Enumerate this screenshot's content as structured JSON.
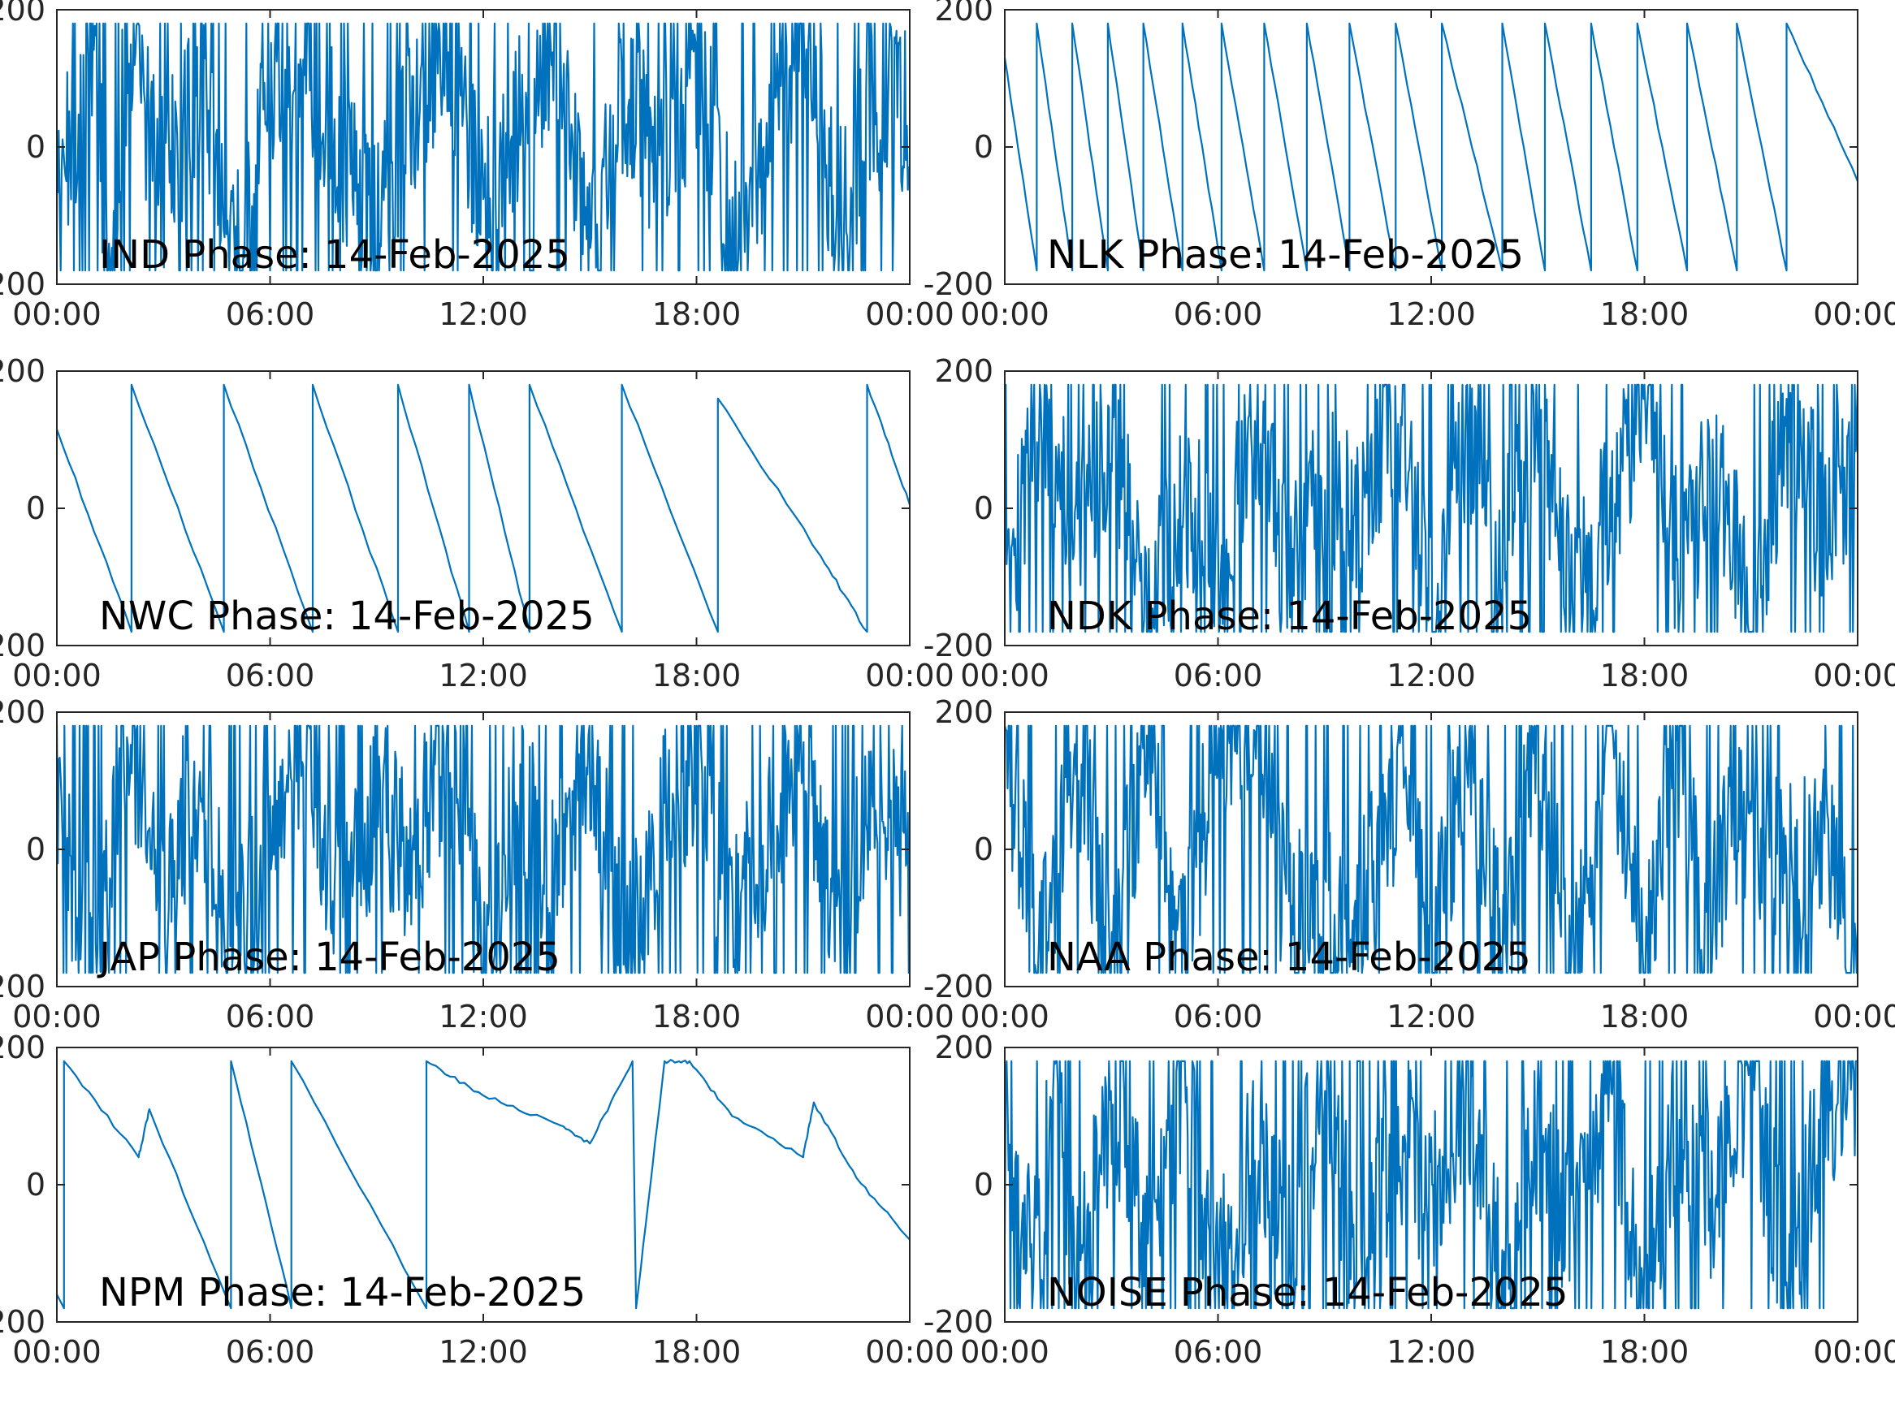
{
  "figure": {
    "line_color": "#0072BD",
    "axis_color": "#262626"
  },
  "chart_data": [
    {
      "type": "line",
      "title": "IND Phase: 14-Feb-2025",
      "pattern": "noisy",
      "x": [
        "00:00",
        "06:00",
        "12:00",
        "18:00",
        "00:00"
      ],
      "xlim": [
        "00:00",
        "00:00"
      ],
      "ylim": [
        -200,
        200
      ],
      "yticks": [
        -200,
        0,
        200
      ],
      "ytick_labels": [
        "-200",
        "0",
        "200"
      ],
      "points": [
        [
          0,
          -80
        ],
        [
          0.5,
          40
        ],
        [
          1,
          120
        ],
        [
          1.5,
          -170
        ],
        [
          2,
          160
        ],
        [
          3,
          -60
        ],
        [
          4,
          90
        ],
        [
          5,
          -150
        ],
        [
          6,
          50
        ],
        [
          7,
          140
        ],
        [
          8,
          -20
        ],
        [
          9,
          -120
        ],
        [
          10,
          60
        ],
        [
          11,
          150
        ],
        [
          12,
          -90
        ],
        [
          13,
          30
        ],
        [
          14,
          170
        ],
        [
          15,
          -160
        ],
        [
          16,
          80
        ],
        [
          17,
          -40
        ],
        [
          18,
          120
        ],
        [
          19,
          -130
        ],
        [
          20,
          20
        ],
        [
          21,
          160
        ],
        [
          22,
          -100
        ],
        [
          23,
          70
        ],
        [
          24,
          40
        ]
      ]
    },
    {
      "type": "line",
      "title": "NLK Phase: 14-Feb-2025",
      "pattern": "sawtooth",
      "x": [
        "00:00",
        "06:00",
        "12:00",
        "18:00",
        "00:00"
      ],
      "xlim": [
        "00:00",
        "00:00"
      ],
      "ylim": [
        -200,
        200
      ],
      "yticks": [
        -200,
        0,
        200
      ],
      "ytick_labels": [
        "-200",
        "0",
        "200"
      ],
      "points": [
        [
          0,
          130
        ],
        [
          0.9,
          -180
        ],
        [
          0.9,
          180
        ],
        [
          1.9,
          -180
        ],
        [
          1.9,
          180
        ],
        [
          2.9,
          -180
        ],
        [
          2.9,
          180
        ],
        [
          3.9,
          -180
        ],
        [
          3.9,
          180
        ],
        [
          5.0,
          -180
        ],
        [
          5.0,
          180
        ],
        [
          6.1,
          -180
        ],
        [
          6.1,
          180
        ],
        [
          7.3,
          -180
        ],
        [
          7.3,
          180
        ],
        [
          8.5,
          -180
        ],
        [
          8.5,
          180
        ],
        [
          9.7,
          -180
        ],
        [
          9.7,
          180
        ],
        [
          11.0,
          -180
        ],
        [
          11.0,
          180
        ],
        [
          12.3,
          -180
        ],
        [
          12.3,
          180
        ],
        [
          14.0,
          -180
        ],
        [
          14.0,
          180
        ],
        [
          15.2,
          -180
        ],
        [
          15.2,
          180
        ],
        [
          16.5,
          -180
        ],
        [
          16.5,
          180
        ],
        [
          17.8,
          -180
        ],
        [
          17.8,
          180
        ],
        [
          19.2,
          -180
        ],
        [
          19.2,
          180
        ],
        [
          20.6,
          -180
        ],
        [
          20.6,
          180
        ],
        [
          22.0,
          -180
        ],
        [
          22.0,
          180
        ],
        [
          24,
          -50
        ]
      ]
    },
    {
      "type": "line",
      "title": "NWC Phase: 14-Feb-2025",
      "pattern": "sawtooth",
      "x": [
        "00:00",
        "06:00",
        "12:00",
        "18:00",
        "00:00"
      ],
      "xlim": [
        "00:00",
        "00:00"
      ],
      "ylim": [
        -200,
        200
      ],
      "yticks": [
        -200,
        0,
        200
      ],
      "ytick_labels": [
        "-200",
        "0",
        "200"
      ],
      "points": [
        [
          0,
          115
        ],
        [
          2.1,
          -180
        ],
        [
          2.1,
          180
        ],
        [
          4.7,
          -180
        ],
        [
          4.7,
          180
        ],
        [
          7.2,
          -180
        ],
        [
          7.2,
          180
        ],
        [
          9.6,
          -180
        ],
        [
          9.6,
          180
        ],
        [
          11.6,
          -180
        ],
        [
          11.6,
          180
        ],
        [
          13.3,
          -180
        ],
        [
          13.3,
          180
        ],
        [
          15.9,
          -180
        ],
        [
          15.9,
          180
        ],
        [
          18.6,
          -180
        ],
        [
          18.6,
          160
        ],
        [
          21.5,
          -70
        ],
        [
          22.8,
          -180
        ],
        [
          22.8,
          180
        ],
        [
          24,
          5
        ]
      ]
    },
    {
      "type": "line",
      "title": "NDK Phase: 14-Feb-2025",
      "pattern": "noisy",
      "x": [
        "00:00",
        "06:00",
        "12:00",
        "18:00",
        "00:00"
      ],
      "xlim": [
        "00:00",
        "00:00"
      ],
      "ylim": [
        -200,
        200
      ],
      "yticks": [
        -200,
        0,
        200
      ],
      "ytick_labels": [
        "-200",
        "0",
        "200"
      ],
      "points": [
        [
          0,
          -150
        ],
        [
          1,
          160
        ],
        [
          2,
          -40
        ],
        [
          3,
          110
        ],
        [
          4,
          -170
        ],
        [
          5,
          20
        ],
        [
          6,
          -80
        ],
        [
          7,
          150
        ],
        [
          8,
          -120
        ],
        [
          9,
          40
        ],
        [
          10,
          -30
        ],
        [
          11,
          170
        ],
        [
          12,
          -160
        ],
        [
          13,
          90
        ],
        [
          14,
          -60
        ],
        [
          15,
          130
        ],
        [
          16,
          -140
        ],
        [
          17,
          10
        ],
        [
          18,
          160
        ],
        [
          19,
          -90
        ],
        [
          20,
          60
        ],
        [
          21,
          -170
        ],
        [
          22,
          120
        ],
        [
          23,
          -20
        ],
        [
          24,
          80
        ]
      ]
    },
    {
      "type": "line",
      "title": "JAP Phase: 14-Feb-2025",
      "pattern": "noisy",
      "x": [
        "00:00",
        "06:00",
        "12:00",
        "18:00",
        "00:00"
      ],
      "xlim": [
        "00:00",
        "00:00"
      ],
      "ylim": [
        -200,
        200
      ],
      "yticks": [
        -200,
        0,
        200
      ],
      "ytick_labels": [
        "-200",
        "0",
        "200"
      ],
      "points": [
        [
          0,
          60
        ],
        [
          1,
          -170
        ],
        [
          2,
          150
        ],
        [
          3,
          -40
        ],
        [
          4,
          100
        ],
        [
          5,
          -160
        ],
        [
          6,
          30
        ],
        [
          7,
          170
        ],
        [
          8,
          -110
        ],
        [
          9,
          70
        ],
        [
          10,
          -20
        ],
        [
          11,
          160
        ],
        [
          12,
          -150
        ],
        [
          13,
          90
        ],
        [
          14,
          -60
        ],
        [
          15,
          140
        ],
        [
          16,
          -170
        ],
        [
          17,
          40
        ],
        [
          18,
          120
        ],
        [
          19,
          -100
        ],
        [
          20,
          10
        ],
        [
          21,
          170
        ],
        [
          22,
          -130
        ],
        [
          23,
          80
        ],
        [
          24,
          0
        ]
      ]
    },
    {
      "type": "line",
      "title": "NAA Phase: 14-Feb-2025",
      "pattern": "noisy",
      "x": [
        "00:00",
        "06:00",
        "12:00",
        "18:00",
        "00:00"
      ],
      "xlim": [
        "00:00",
        "00:00"
      ],
      "ylim": [
        -200,
        200
      ],
      "yticks": [
        -200,
        0,
        200
      ],
      "ytick_labels": [
        "-200",
        "0",
        "200"
      ],
      "points": [
        [
          0,
          170
        ],
        [
          1,
          -170
        ],
        [
          2,
          160
        ],
        [
          3,
          -160
        ],
        [
          4,
          150
        ],
        [
          5,
          -170
        ],
        [
          6,
          170
        ],
        [
          7.4,
          170
        ],
        [
          7.6,
          -30
        ],
        [
          8.5,
          -120
        ],
        [
          9.5,
          -90
        ],
        [
          10.5,
          -30
        ],
        [
          11.0,
          60
        ],
        [
          11.3,
          180
        ],
        [
          12,
          -170
        ],
        [
          13,
          170
        ],
        [
          14,
          -160
        ],
        [
          15,
          160
        ],
        [
          16,
          -170
        ],
        [
          17,
          170
        ],
        [
          18,
          -160
        ],
        [
          19,
          160
        ],
        [
          19.7,
          -170
        ],
        [
          20,
          -40
        ],
        [
          21,
          60
        ],
        [
          21.5,
          -10
        ],
        [
          22,
          -30
        ],
        [
          23,
          20
        ],
        [
          24,
          -170
        ]
      ]
    },
    {
      "type": "line",
      "title": "NPM Phase: 14-Feb-2025",
      "pattern": "sawtooth",
      "x": [
        "00:00",
        "06:00",
        "12:00",
        "18:00",
        "00:00"
      ],
      "xlim": [
        "00:00",
        "00:00"
      ],
      "ylim": [
        -200,
        200
      ],
      "yticks": [
        -200,
        0,
        200
      ],
      "ytick_labels": [
        "-200",
        "0",
        "200"
      ],
      "points": [
        [
          0,
          -160
        ],
        [
          0.2,
          -180
        ],
        [
          0.2,
          180
        ],
        [
          2.3,
          40
        ],
        [
          2.6,
          110
        ],
        [
          4.9,
          -180
        ],
        [
          4.9,
          180
        ],
        [
          6.6,
          -180
        ],
        [
          6.6,
          180
        ],
        [
          10.4,
          -180
        ],
        [
          10.4,
          180
        ],
        [
          12,
          130
        ],
        [
          14,
          90
        ],
        [
          15,
          60
        ],
        [
          16.2,
          180
        ],
        [
          16.3,
          -180
        ],
        [
          17.1,
          180
        ],
        [
          17.8,
          180
        ],
        [
          19,
          100
        ],
        [
          21,
          40
        ],
        [
          21.3,
          120
        ],
        [
          22.5,
          10
        ],
        [
          24,
          -80
        ]
      ]
    },
    {
      "type": "line",
      "title": "NOISE Phase: 14-Feb-2025",
      "pattern": "noisy",
      "x": [
        "00:00",
        "06:00",
        "12:00",
        "18:00",
        "00:00"
      ],
      "xlim": [
        "00:00",
        "00:00"
      ],
      "ylim": [
        -200,
        200
      ],
      "yticks": [
        -200,
        0,
        200
      ],
      "ytick_labels": [
        "-200",
        "0",
        "200"
      ],
      "points": [
        [
          0,
          30
        ],
        [
          0.5,
          -100
        ],
        [
          1,
          -40
        ],
        [
          1.5,
          150
        ],
        [
          2,
          -170
        ],
        [
          3,
          120
        ],
        [
          4,
          -60
        ],
        [
          5,
          160
        ],
        [
          6,
          -140
        ],
        [
          7,
          40
        ],
        [
          8,
          -100
        ],
        [
          9,
          170
        ],
        [
          10,
          -170
        ],
        [
          11,
          80
        ],
        [
          12,
          -20
        ],
        [
          13,
          150
        ],
        [
          14,
          -160
        ],
        [
          15,
          60
        ],
        [
          16,
          -80
        ],
        [
          17,
          170
        ],
        [
          18,
          -170
        ],
        [
          19,
          110
        ],
        [
          20,
          -30
        ],
        [
          21,
          160
        ],
        [
          22,
          -150
        ],
        [
          23,
          90
        ],
        [
          24,
          170
        ]
      ]
    }
  ]
}
